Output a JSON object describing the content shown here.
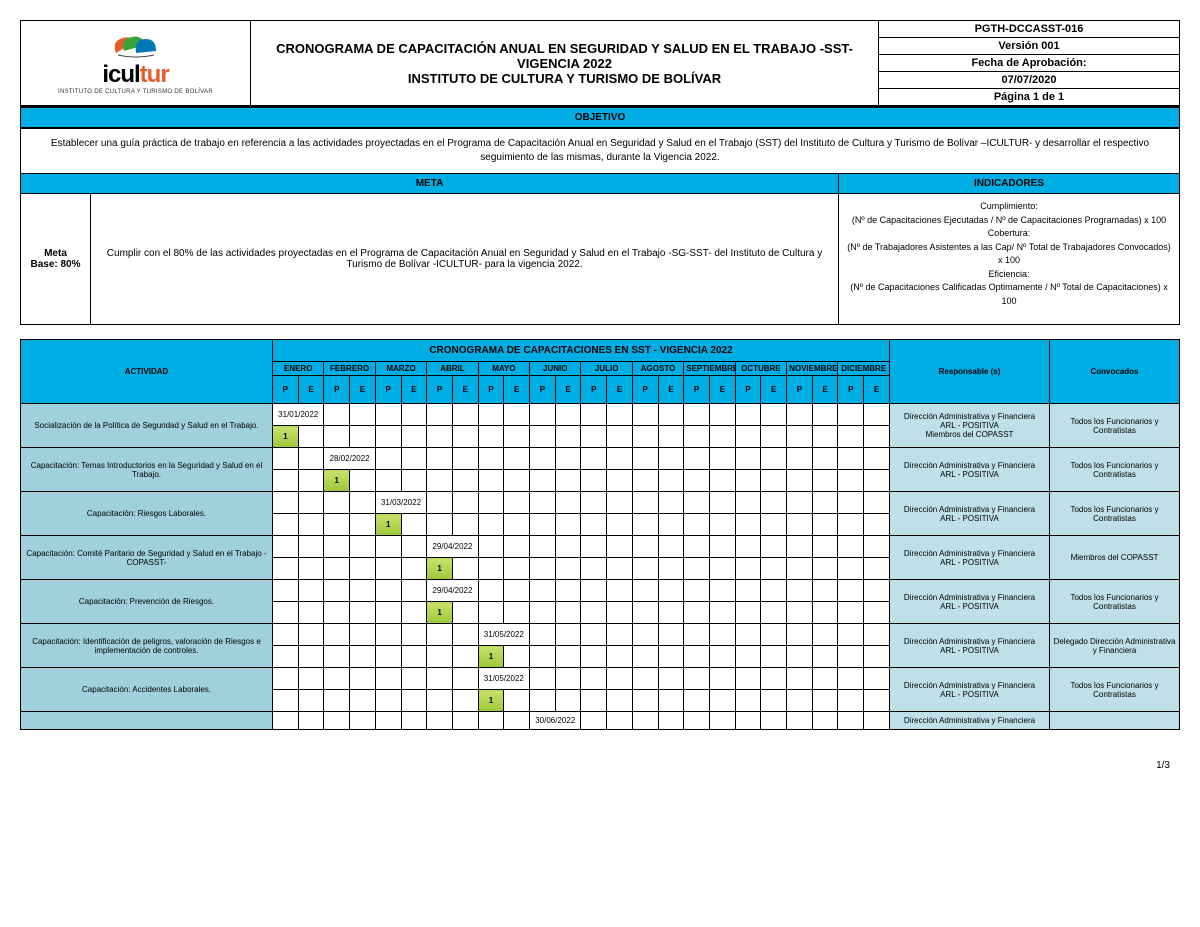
{
  "colors": {
    "band": "#00aee6",
    "activity_bg": "#9fd0db",
    "light_bg": "#bfe0e8",
    "one_cell_grad_top": "#c9e26a",
    "one_cell_grad_bot": "#9cc83a",
    "logo_accent": "#e95b2b"
  },
  "header": {
    "logo_main": "icul",
    "logo_accent": "tur",
    "logo_sub": "INSTITUTO DE CULTURA Y TURISMO DE BOLÍVAR",
    "title_l1": "CRONOGRAMA DE CAPACITACIÓN ANUAL EN SEGURIDAD Y SALUD EN EL TRABAJO -SST-",
    "title_l2": "VIGENCIA 2022",
    "title_l3": "INSTITUTO DE CULTURA Y TURISMO DE BOLÍVAR",
    "meta": {
      "code": "PGTH-DCCASST-016",
      "version": "Versión 001",
      "approval_label": "Fecha de Aprobación:",
      "approval_date": "07/07/2020",
      "page": "Página 1 de 1"
    }
  },
  "objective": {
    "heading": "OBJETIVO",
    "text": "Establecer una guía práctica de trabajo en referencia a las actividades proyectadas en el Programa de Capacitación Anual en Seguridad y Salud en el Trabajo (SST) del Instituto de Cultura y Turismo de Bolívar –ICULTUR- y desarrollar el respectivo seguimiento de las mismas, durante la Vigencia 2022."
  },
  "meta": {
    "heading": "META",
    "base_l1": "Meta",
    "base_l2": "Base: 80%",
    "text": "Cumplir con el 80% de las actividades proyectadas en el Programa de Capacitación Anual en Seguridad y Salud en el Trabajo -SG-SST- del Instituto de Cultura y Turismo de Bolívar -ICULTUR- para la vigencia 2022."
  },
  "indicators": {
    "heading": "INDICADORES",
    "l1": "Cumplimiento:",
    "l2": "(Nº de Capacitaciones Ejecutadas / Nº de Capacitaciones Programadas) x 100",
    "l3": "Cobertura:",
    "l4": "(Nº de Trabajadores Asistentes a las Cap/ Nº Total de Trabajadores Convocados) x 100",
    "l5": "Eficiencia:",
    "l6": "(Nº de Capacitaciones Calificadas Optimamente / Nº Total de Capacitaciones) x 100"
  },
  "schedule": {
    "band": "CRONOGRAMA DE CAPACITACIONES EN SST - VIGENCIA 2022",
    "activity_header": "ACTIVIDAD",
    "responsible_header": "Responsable (s)",
    "convocados_header": "Convocados",
    "months": [
      "ENERO",
      "FEBRERO",
      "MARZO",
      "ABRIL",
      "MAYO",
      "JUNIO",
      "JULIO",
      "AGOSTO",
      "SEPTIEMBRE",
      "OCTUBRE",
      "NOVIEMBRE",
      "DICIEMBRE"
    ],
    "pe": [
      "P",
      "E"
    ],
    "rows": [
      {
        "activity": "Socialización de la Política de Seguridad y Salud en el Trabajo.",
        "date": "31/01/2022",
        "slot": 0,
        "responsible": "Dirección Administrativa y Financiera\nARL - POSITIVA\nMiembros del COPASST",
        "convocados": "Todos los Funcionarios y Contratistas"
      },
      {
        "activity": "Capacitación: Temas Introductorios en la Seguridad y Salud en el Trabajo.",
        "date": "28/02/2022",
        "slot": 1,
        "responsible": "Dirección Administrativa y Financiera\nARL - POSITIVA",
        "convocados": "Todos los Funcionarios y Contratistas"
      },
      {
        "activity": "Capacitación: Riesgos Laborales.",
        "date": "31/03/2022",
        "slot": 2,
        "responsible": "Dirección Administrativa y Financiera\nARL - POSITIVA",
        "convocados": "Todos los Funcionarios y Contratistas"
      },
      {
        "activity": "Capacitación: Comité Paritario de Seguridad y Salud en el Trabajo -COPASST-",
        "date": "29/04/2022",
        "slot": 3,
        "responsible": "Dirección Administrativa y Financiera\nARL - POSITIVA",
        "convocados": "Miembros del COPASST"
      },
      {
        "activity": "Capacitación: Prevención de Riesgos.",
        "date": "29/04/2022",
        "slot": 3,
        "responsible": "Dirección Administrativa y Financiera\nARL - POSITIVA",
        "convocados": "Todos los Funcionarios y Contratistas"
      },
      {
        "activity": "Capacitación: Identificación de peligros, valoración de Riesgos e implementación de controles.",
        "date": "31/05/2022",
        "slot": 4,
        "responsible": "Dirección Administrativa y Financiera\nARL - POSITIVA",
        "convocados": "Delegado Dirección Administrativa y Financiera"
      },
      {
        "activity": "Capacitación: Accidentes Laborales.",
        "date": "31/05/2022",
        "slot": 4,
        "responsible": "Dirección Administrativa y Financiera\nARL - POSITIVA",
        "convocados": "Todos los Funcionarios y Contratistas"
      }
    ],
    "partial_row": {
      "date": "30/06/2022",
      "slot": 5,
      "responsible": "Dirección Administrativa y Financiera"
    }
  },
  "footer": "1/3"
}
